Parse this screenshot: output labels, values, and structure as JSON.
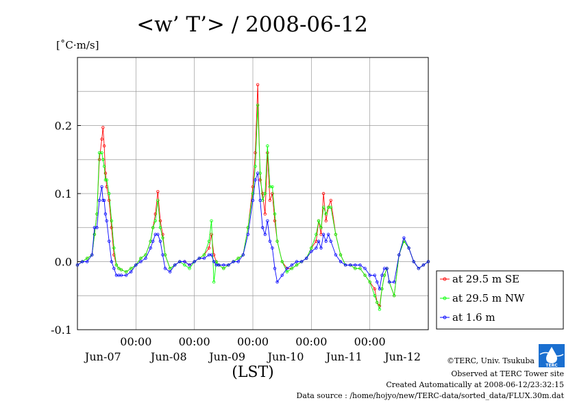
{
  "chart_data": {
    "type": "line",
    "title": "<w’ T’> / 2008-06-12",
    "ylabel": "[˚C·m/s]",
    "xlabel": "(LST)",
    "ylim": [
      -0.1,
      0.3
    ],
    "yticks": [
      -0.1,
      0.0,
      0.1,
      0.2
    ],
    "ytick_labels": [
      "-0.1",
      "0.0",
      "0.1",
      "0.2"
    ],
    "xlim": [
      0,
      144
    ],
    "xticks": [
      {
        "x": 24,
        "time": "00:00",
        "date": "Jun-08"
      },
      {
        "x": 48,
        "time": "00:00",
        "date": "Jun-09"
      },
      {
        "x": 72,
        "time": "00:00",
        "date": "Jun-10"
      },
      {
        "x": 96,
        "time": "00:00",
        "date": "Jun-11"
      },
      {
        "x": 120,
        "time": "00:00",
        "date": "Jun-12"
      }
    ],
    "first_date_label": "Jun-07",
    "grid": true,
    "legend_position": "right",
    "series": [
      {
        "name": "at 29.5 m SE",
        "color": "#ff0000",
        "x": [
          0,
          2,
          4,
          6,
          7,
          8,
          9,
          10,
          10.5,
          11,
          11.5,
          12,
          13,
          14,
          15,
          16,
          17,
          18,
          20,
          22,
          24,
          26,
          28,
          30,
          31,
          32,
          33,
          34,
          35,
          36,
          38,
          40,
          42,
          44,
          46,
          48,
          50,
          52,
          54,
          55,
          56,
          57,
          58,
          60,
          62,
          64,
          66,
          68,
          70,
          72,
          73,
          74,
          75,
          76,
          77,
          78,
          79,
          80,
          81,
          82,
          84,
          86,
          88,
          90,
          92,
          94,
          96,
          98,
          99,
          100,
          101,
          102,
          103,
          104,
          106,
          108,
          110,
          112,
          114,
          116,
          118,
          120,
          122,
          123,
          124,
          125,
          126,
          127,
          128,
          130,
          132,
          134,
          136,
          138,
          140,
          142,
          144
        ],
        "y": [
          -0.005,
          0,
          0.005,
          0.01,
          0.04,
          0.07,
          0.15,
          0.18,
          0.197,
          0.17,
          0.13,
          0.11,
          0.09,
          0.05,
          0.01,
          -0.005,
          -0.01,
          -0.012,
          -0.015,
          -0.01,
          -0.005,
          0.005,
          0.01,
          0.03,
          0.05,
          0.07,
          0.103,
          0.06,
          0.04,
          0.01,
          -0.01,
          -0.005,
          0,
          0,
          -0.005,
          0,
          0.005,
          0.01,
          0.02,
          0.04,
          0.01,
          0,
          -0.005,
          -0.01,
          -0.005,
          0,
          0.005,
          0.01,
          0.05,
          0.11,
          0.16,
          0.26,
          0.12,
          0.1,
          0.07,
          0.16,
          0.09,
          0.1,
          0.06,
          0.03,
          0,
          -0.01,
          -0.01,
          -0.005,
          0,
          0.005,
          0.02,
          0.03,
          0.06,
          0.04,
          0.1,
          0.06,
          0.08,
          0.09,
          0.04,
          0.01,
          -0.005,
          -0.005,
          -0.01,
          -0.01,
          -0.02,
          -0.03,
          -0.04,
          -0.06,
          -0.065,
          -0.04,
          -0.02,
          -0.01,
          -0.03,
          -0.05,
          0.01,
          0.03,
          0.02,
          0,
          -0.01,
          -0.005,
          0
        ]
      },
      {
        "name": "at 29.5 m NW",
        "color": "#00ff00",
        "x": [
          0,
          2,
          4,
          6,
          7,
          8,
          9,
          10,
          10.5,
          11,
          11.5,
          12,
          13,
          14,
          15,
          16,
          17,
          18,
          20,
          22,
          24,
          26,
          28,
          30,
          31,
          32,
          33,
          34,
          35,
          36,
          38,
          40,
          42,
          44,
          46,
          48,
          50,
          52,
          54,
          55,
          56,
          57,
          58,
          60,
          62,
          64,
          66,
          68,
          70,
          72,
          73,
          74,
          75,
          76,
          77,
          78,
          79,
          80,
          81,
          82,
          84,
          86,
          88,
          90,
          92,
          94,
          96,
          98,
          99,
          100,
          101,
          102,
          103,
          104,
          106,
          108,
          110,
          112,
          114,
          116,
          118,
          120,
          122,
          123,
          124,
          125,
          126,
          127,
          128,
          130,
          132,
          134,
          136,
          138,
          140,
          142,
          144
        ],
        "y": [
          -0.005,
          0,
          0.005,
          0.01,
          0.04,
          0.07,
          0.16,
          0.16,
          0.15,
          0.14,
          0.12,
          0.12,
          0.1,
          0.06,
          0.02,
          -0.005,
          -0.01,
          -0.012,
          -0.015,
          -0.01,
          -0.005,
          0.005,
          0.01,
          0.03,
          0.05,
          0.06,
          0.09,
          0.05,
          0.035,
          0.01,
          -0.01,
          -0.005,
          0,
          -0.005,
          -0.01,
          0,
          0.005,
          0.01,
          0.03,
          0.06,
          -0.03,
          0,
          -0.005,
          -0.01,
          -0.005,
          0,
          0.005,
          0.01,
          0.05,
          0.1,
          0.14,
          0.23,
          0.13,
          0.09,
          0.1,
          0.17,
          0.11,
          0.11,
          0.07,
          0.03,
          0,
          -0.015,
          -0.01,
          -0.005,
          0,
          0.005,
          0.02,
          0.04,
          0.06,
          0.05,
          0.08,
          0.07,
          0.08,
          0.08,
          0.04,
          0.01,
          -0.005,
          -0.005,
          -0.01,
          -0.01,
          -0.02,
          -0.03,
          -0.05,
          -0.06,
          -0.07,
          -0.04,
          -0.02,
          -0.01,
          -0.03,
          -0.05,
          0.01,
          0.03,
          0.02,
          0,
          -0.01,
          -0.005,
          0
        ]
      },
      {
        "name": "at 1.6 m",
        "color": "#0000ff",
        "x": [
          0,
          2,
          4,
          6,
          7,
          8,
          9,
          10,
          10.5,
          11,
          11.5,
          12,
          13,
          14,
          15,
          16,
          17,
          18,
          20,
          22,
          24,
          26,
          28,
          30,
          31,
          32,
          33,
          34,
          35,
          36,
          38,
          40,
          42,
          44,
          46,
          48,
          50,
          52,
          54,
          55,
          56,
          57,
          58,
          60,
          62,
          64,
          66,
          68,
          70,
          72,
          73,
          74,
          75,
          76,
          77,
          78,
          79,
          80,
          81,
          82,
          84,
          86,
          88,
          90,
          92,
          94,
          96,
          98,
          99,
          100,
          101,
          102,
          103,
          104,
          106,
          108,
          110,
          112,
          114,
          116,
          118,
          120,
          122,
          123,
          124,
          125,
          126,
          127,
          128,
          130,
          132,
          134,
          136,
          138,
          140,
          142,
          144
        ],
        "y": [
          -0.005,
          0,
          0,
          0.01,
          0.05,
          0.05,
          0.09,
          0.11,
          0.09,
          0.09,
          0.07,
          0.06,
          0.03,
          0,
          -0.01,
          -0.02,
          -0.02,
          -0.02,
          -0.02,
          -0.015,
          -0.005,
          0,
          0.005,
          0.02,
          0.03,
          0.04,
          0.04,
          0.03,
          0.01,
          -0.01,
          -0.015,
          -0.005,
          0,
          0,
          -0.005,
          0,
          0.005,
          0.005,
          0.01,
          0.01,
          0,
          -0.005,
          -0.005,
          -0.005,
          -0.005,
          0,
          0,
          0.01,
          0.04,
          0.09,
          0.12,
          0.13,
          0.09,
          0.05,
          0.04,
          0.06,
          0.03,
          0.02,
          -0.01,
          -0.03,
          -0.02,
          -0.01,
          -0.005,
          0,
          0,
          0.005,
          0.015,
          0.02,
          0.03,
          0.02,
          0.04,
          0.03,
          0.04,
          0.03,
          0.01,
          0,
          -0.005,
          -0.005,
          -0.005,
          -0.005,
          -0.01,
          -0.02,
          -0.02,
          -0.03,
          -0.04,
          -0.02,
          -0.01,
          -0.01,
          -0.03,
          -0.03,
          0.01,
          0.035,
          0.02,
          0,
          -0.01,
          -0.005,
          0
        ]
      }
    ]
  },
  "footer": {
    "copyright": "©TERC, Univ. Tsukuba",
    "observed": "Observed at TERC Tower site",
    "created": "Created Automatically at 2008-06-12/23:32:15",
    "source": "Data source : /home/hojyo/new/TERC-data/sorted_data/FLUX.30m.dat",
    "logo_text": "TERC"
  }
}
